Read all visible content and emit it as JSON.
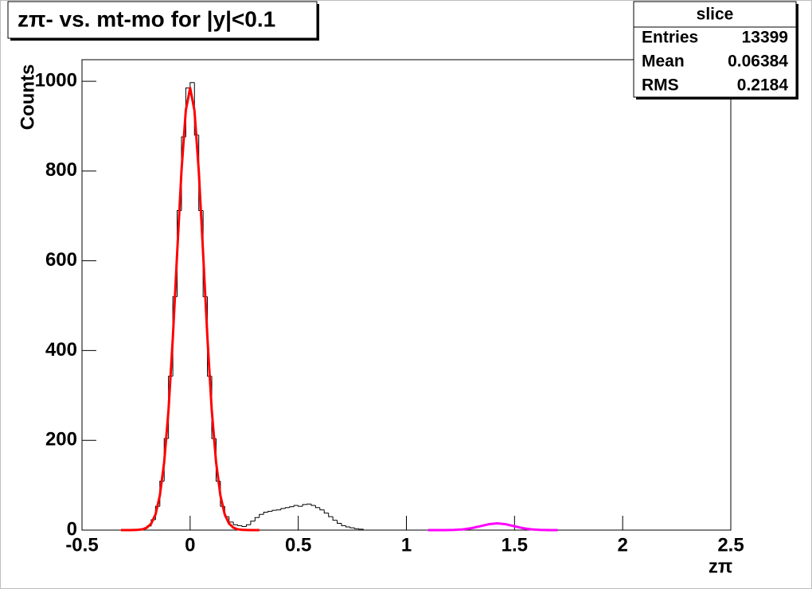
{
  "chart_data": {
    "type": "histogram",
    "title": "zπ- vs. mt-mo for |y|<0.1",
    "x_label": "zπ",
    "y_label": "Counts",
    "color": "#000000",
    "bins": [
      -0.3,
      -0.28,
      -0.26,
      -0.24,
      -0.22,
      -0.2,
      -0.18,
      -0.16,
      -0.14,
      -0.12,
      -0.1,
      -0.08,
      -0.06,
      -0.04,
      -0.02,
      0,
      0.02,
      0.04,
      0.06,
      0.08,
      0.1,
      0.12,
      0.14,
      0.16,
      0.18,
      0.2,
      0.22,
      0.24,
      0.26,
      0.28,
      0.3,
      0.32,
      0.34,
      0.36,
      0.38,
      0.4,
      0.42,
      0.44,
      0.46,
      0.48,
      0.5,
      0.52,
      0.54,
      0.56,
      0.58,
      0.6,
      0.62,
      0.64,
      0.66,
      0.68,
      0.7,
      0.72,
      0.74,
      0.76,
      0.78,
      0.8
    ],
    "counts": [
      0,
      0,
      0,
      1,
      3,
      9,
      23,
      53,
      109,
      204,
      343,
      520,
      712,
      876,
      985,
      997,
      880,
      712,
      520,
      343,
      204,
      109,
      53,
      30,
      18,
      12,
      10,
      8,
      12,
      20,
      28,
      35,
      40,
      42,
      44,
      45,
      48,
      50,
      52,
      55,
      53,
      57,
      58,
      55,
      50,
      45,
      38,
      30,
      22,
      15,
      10,
      7,
      5,
      3,
      2
    ],
    "fits": [
      {
        "color": "#ff0000",
        "x": [
          -0.32,
          -0.3,
          -0.28,
          -0.26,
          -0.24,
          -0.22,
          -0.2,
          -0.18,
          -0.16,
          -0.14,
          -0.12,
          -0.1,
          -0.08,
          -0.06,
          -0.04,
          -0.02,
          0,
          0.02,
          0.04,
          0.06,
          0.08,
          0.1,
          0.12,
          0.14,
          0.16,
          0.18,
          0.2,
          0.22,
          0.24,
          0.26,
          0.28,
          0.3,
          0.32
        ],
        "values": [
          0,
          0,
          0,
          0.2,
          0.6,
          1.8,
          5.4,
          14.5,
          35,
          77,
          151,
          267,
          428,
          617,
          800,
          935,
          985,
          935,
          800,
          617,
          428,
          267,
          151,
          77,
          35,
          14.5,
          5.4,
          1.8,
          0.6,
          0.2,
          0,
          0,
          0
        ]
      },
      {
        "color": "#ff00ff",
        "x": [
          1.1,
          1.14,
          1.18,
          1.22,
          1.26,
          1.3,
          1.34,
          1.38,
          1.42,
          1.46,
          1.5,
          1.54,
          1.58,
          1.62,
          1.66,
          1.7
        ],
        "values": [
          0,
          0,
          0.1,
          0.4,
          1.5,
          4.2,
          8.5,
          13,
          15,
          13,
          8.5,
          4.2,
          1.5,
          0.4,
          0.1,
          0
        ]
      }
    ],
    "xlim": [
      -0.5,
      2.5
    ],
    "xticks": [
      -0.5,
      0,
      0.5,
      1,
      1.5,
      2,
      2.5
    ],
    "ylim": [
      0,
      1048
    ],
    "yticks": [
      0,
      200,
      400,
      600,
      800,
      1000
    ],
    "stats": {
      "title": "slice",
      "rows": [
        {
          "label": "Entries",
          "value": 13399
        },
        {
          "label": "Mean",
          "value": 0.06384
        },
        {
          "label": "RMS",
          "value": 0.2184
        }
      ]
    }
  }
}
